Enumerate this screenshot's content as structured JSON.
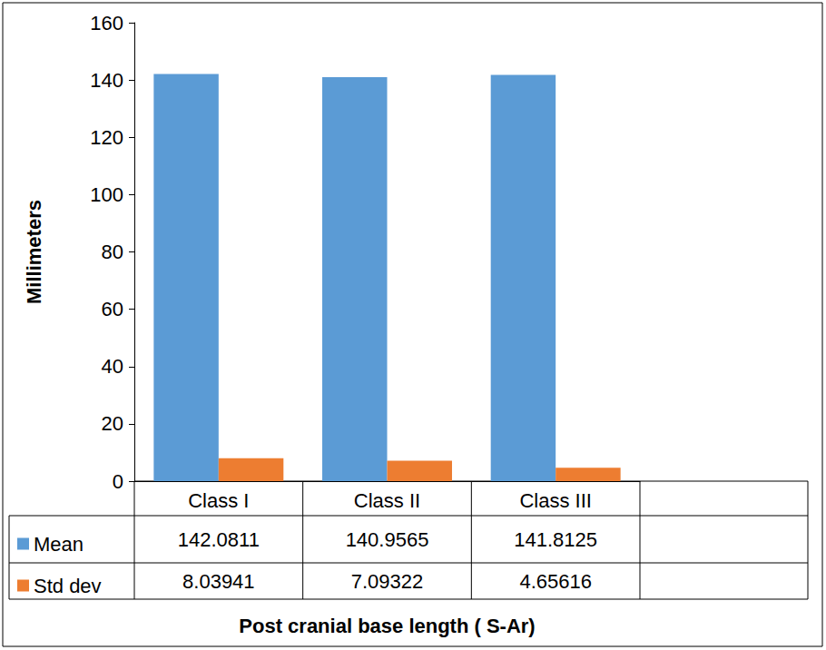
{
  "chart_data": {
    "type": "bar",
    "x_label": "Post cranial base length ( S-Ar)",
    "y_label": "Millimeters",
    "categories": [
      "Class I",
      "Class II",
      "Class III"
    ],
    "series": [
      {
        "name": "Mean",
        "color": "#5b9bd5",
        "values": [
          142.0811,
          140.9565,
          141.8125
        ]
      },
      {
        "name": "Std dev",
        "color": "#ed7d31",
        "values": [
          8.03941,
          7.09322,
          4.65616
        ]
      }
    ],
    "ylim": [
      0,
      160
    ],
    "yticks": [
      0,
      20,
      40,
      60,
      80,
      100,
      120,
      140,
      160
    ],
    "grid": false,
    "legend": "lower left"
  }
}
